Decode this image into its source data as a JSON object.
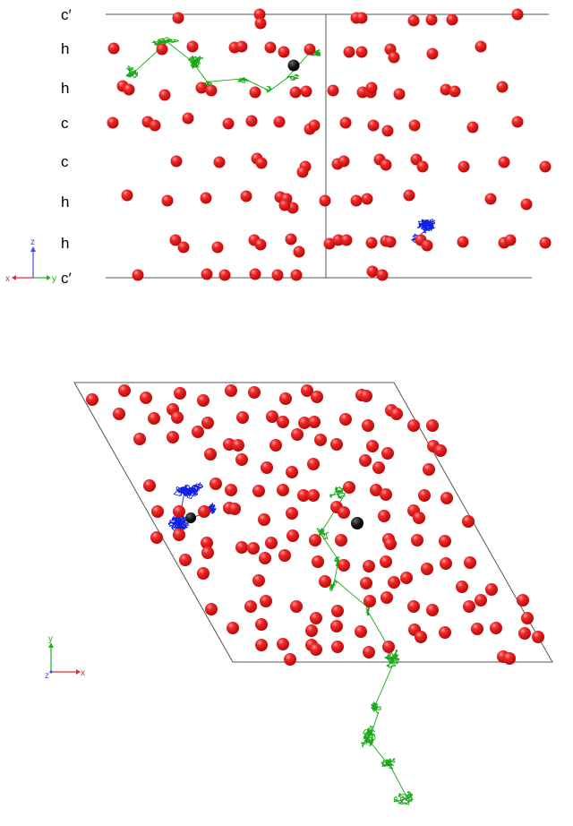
{
  "top_panel": {
    "layer_labels": [
      "c′",
      "h",
      "h",
      "c",
      "c",
      "h",
      "h",
      "c′"
    ],
    "axes": {
      "horizontal_left": "x",
      "horizontal_right": "y",
      "vertical": "z"
    }
  },
  "bottom_panel": {
    "axes": {
      "horizontal": "x",
      "vertical": "y",
      "origin": "z"
    }
  },
  "colors": {
    "atom": "#e0141c",
    "atom_highlight": "#ff8a8a",
    "green_trajectory": "#18a818",
    "blue_trajectory": "#1020e8",
    "black_atom": "#0c0c0c",
    "cell_outline": "#555555",
    "axis_x": "#e03030",
    "axis_y": "#20b020",
    "axis_z": "#4050e0"
  }
}
